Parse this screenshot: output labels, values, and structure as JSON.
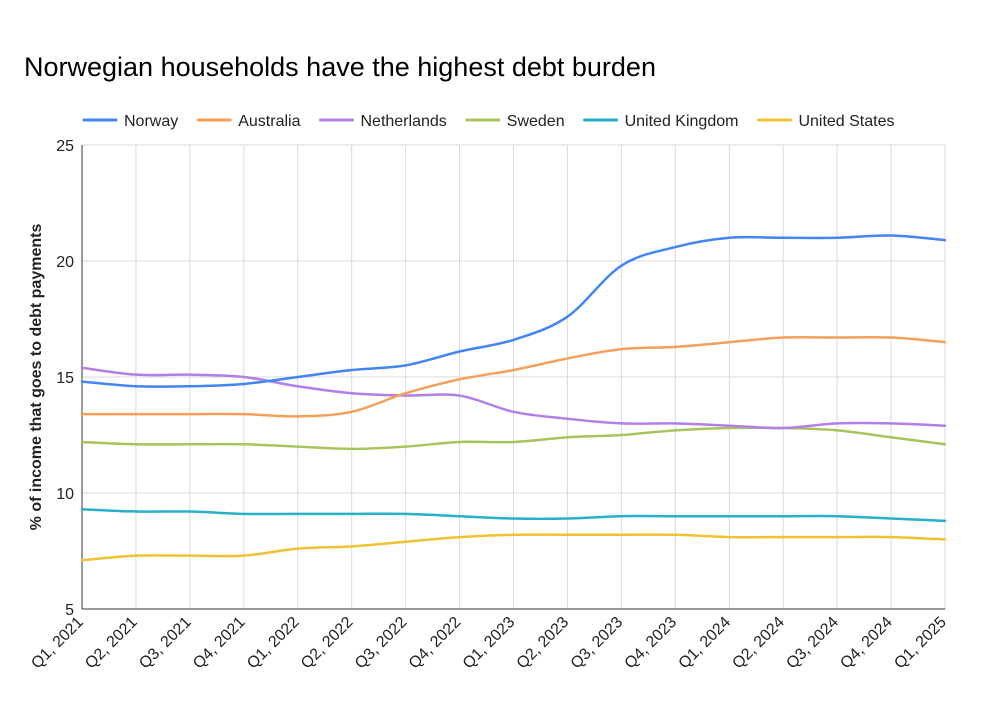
{
  "chart_data": {
    "type": "line",
    "title": "Norwegian households have the highest debt burden",
    "xlabel": "",
    "ylabel": "% of income that goes to debt payments",
    "ylim": [
      5,
      25
    ],
    "yticks": [
      5,
      10,
      15,
      20,
      25
    ],
    "grid": true,
    "legend_position": "top",
    "categories": [
      "Q1, 2021",
      "Q2, 2021",
      "Q3, 2021",
      "Q4, 2021",
      "Q1, 2022",
      "Q2, 2022",
      "Q3, 2022",
      "Q4, 2022",
      "Q1, 2023",
      "Q2, 2023",
      "Q3, 2023",
      "Q4, 2023",
      "Q1, 2024",
      "Q2, 2024",
      "Q3, 2024",
      "Q4, 2024",
      "Q1, 2025"
    ],
    "series": [
      {
        "name": "Norway",
        "color": "#4285f4",
        "values": [
          14.8,
          14.6,
          14.6,
          14.7,
          15.0,
          15.3,
          15.5,
          16.1,
          16.6,
          17.6,
          19.8,
          20.6,
          21.0,
          21.0,
          21.0,
          21.1,
          20.9
        ]
      },
      {
        "name": "Australia",
        "color": "#f4a05a",
        "values": [
          13.4,
          13.4,
          13.4,
          13.4,
          13.3,
          13.5,
          14.3,
          14.9,
          15.3,
          15.8,
          16.2,
          16.3,
          16.5,
          16.7,
          16.7,
          16.7,
          16.5
        ]
      },
      {
        "name": "Netherlands",
        "color": "#b27fe6",
        "values": [
          15.4,
          15.1,
          15.1,
          15.0,
          14.6,
          14.3,
          14.2,
          14.2,
          13.5,
          13.2,
          13.0,
          13.0,
          12.9,
          12.8,
          13.0,
          13.0,
          12.9
        ]
      },
      {
        "name": "Sweden",
        "color": "#a9c45c",
        "values": [
          12.2,
          12.1,
          12.1,
          12.1,
          12.0,
          11.9,
          12.0,
          12.2,
          12.2,
          12.4,
          12.5,
          12.7,
          12.8,
          12.8,
          12.7,
          12.4,
          12.1
        ]
      },
      {
        "name": "United Kingdom",
        "color": "#26b0c9",
        "values": [
          9.3,
          9.2,
          9.2,
          9.1,
          9.1,
          9.1,
          9.1,
          9.0,
          8.9,
          8.9,
          9.0,
          9.0,
          9.0,
          9.0,
          9.0,
          8.9,
          8.8
        ]
      },
      {
        "name": "United States",
        "color": "#f0c232",
        "values": [
          7.1,
          7.3,
          7.3,
          7.3,
          7.6,
          7.7,
          7.9,
          8.1,
          8.2,
          8.2,
          8.2,
          8.2,
          8.1,
          8.1,
          8.1,
          8.1,
          8.0
        ]
      }
    ]
  }
}
